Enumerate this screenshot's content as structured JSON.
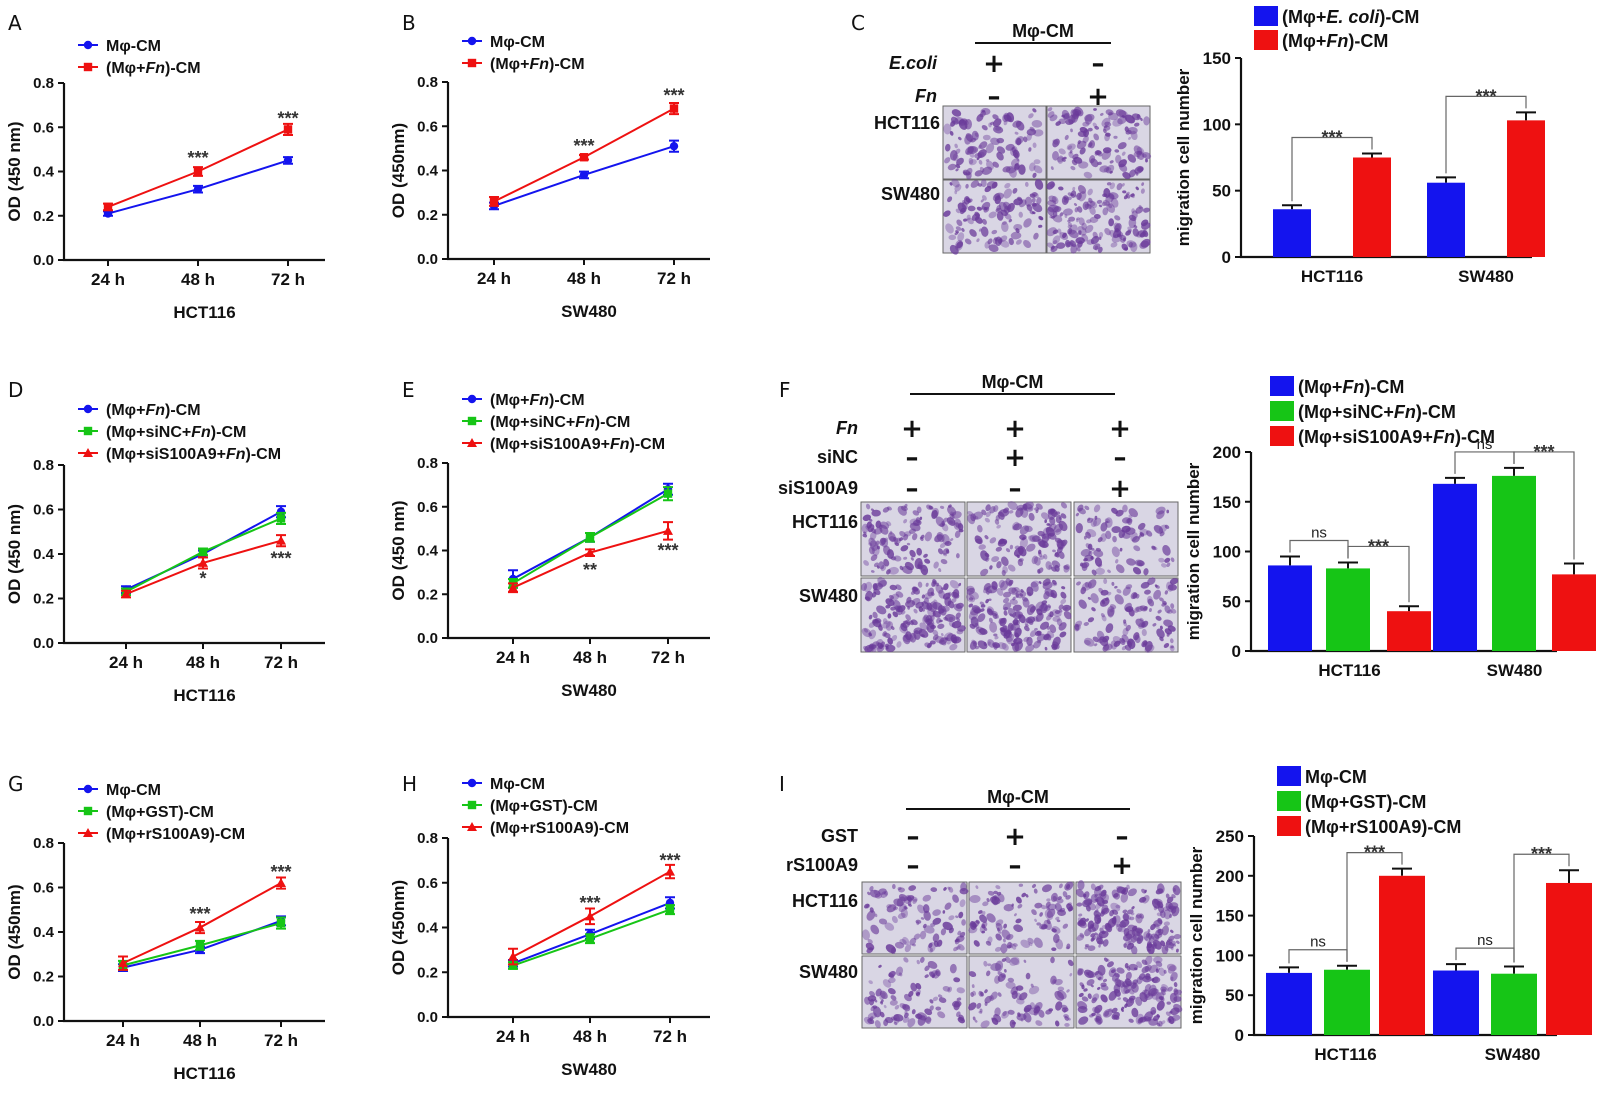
{
  "panels": {
    "A": {
      "letter": "A"
    },
    "B": {
      "letter": "B"
    },
    "C": {
      "letter": "C"
    },
    "D": {
      "letter": "D"
    },
    "E": {
      "letter": "E"
    },
    "F": {
      "letter": "F"
    },
    "G": {
      "letter": "G"
    },
    "H": {
      "letter": "H"
    },
    "I": {
      "letter": "I"
    }
  },
  "colors": {
    "blue": "#1414ee",
    "red": "#ee1111",
    "green": "#16c516"
  },
  "microscopy": {
    "C": {
      "header": "Mφ-CM",
      "rows": [
        "HCT116",
        "SW480"
      ],
      "conditions": [
        {
          "label": "E.coli",
          "italic": true,
          "signs": [
            "+",
            "-"
          ]
        },
        {
          "label": "Fn",
          "italic": true,
          "signs": [
            "-",
            "+"
          ]
        }
      ],
      "densities": [
        [
          0.45,
          0.55
        ],
        [
          0.5,
          0.8
        ]
      ]
    },
    "F": {
      "header": "Mφ-CM",
      "rows": [
        "HCT116",
        "SW480"
      ],
      "conditions": [
        {
          "label": "Fn",
          "italic": true,
          "signs": [
            "+",
            "+",
            "+"
          ]
        },
        {
          "label": "siNC",
          "italic": false,
          "signs": [
            "-",
            "+",
            "-"
          ]
        },
        {
          "label": "siS100A9",
          "italic": false,
          "signs": [
            "-",
            "-",
            "+"
          ]
        }
      ],
      "densities": [
        [
          0.6,
          0.6,
          0.35
        ],
        [
          0.95,
          0.95,
          0.55
        ]
      ]
    },
    "I": {
      "header": "Mφ-CM",
      "rows": [
        "HCT116",
        "SW480"
      ],
      "conditions": [
        {
          "label": "GST",
          "italic": false,
          "signs": [
            "-",
            "+",
            "-"
          ]
        },
        {
          "label": "rS100A9",
          "italic": false,
          "signs": [
            "-",
            "-",
            "+"
          ]
        }
      ],
      "densities": [
        [
          0.4,
          0.45,
          1.0
        ],
        [
          0.35,
          0.35,
          0.8
        ]
      ]
    }
  },
  "chart_data": [
    {
      "id": "A",
      "type": "line",
      "xlabel": "HCT116",
      "ylabel": "OD (450 nm)",
      "ylim": [
        0,
        0.8
      ],
      "yticks": [
        "0.0",
        "0.2",
        "0.4",
        "0.6",
        "0.8"
      ],
      "categories": [
        "24 h",
        "48 h",
        "72 h"
      ],
      "series": [
        {
          "name": "Mφ-CM",
          "color": "#1414ee",
          "marker": "circle",
          "values": [
            0.21,
            0.32,
            0.45
          ],
          "errors": [
            0.01,
            0.015,
            0.015
          ]
        },
        {
          "name": "(Mφ+Fn)-CM",
          "color": "#ee1111",
          "marker": "square",
          "values": [
            0.24,
            0.4,
            0.59
          ],
          "errors": [
            0.015,
            0.02,
            0.025
          ]
        }
      ],
      "annotations": [
        {
          "category": "48 h",
          "text": "***",
          "y": 0.46
        },
        {
          "category": "72 h",
          "text": "***",
          "y": 0.64
        }
      ]
    },
    {
      "id": "B",
      "type": "line",
      "xlabel": "SW480",
      "ylabel": "OD (450nm)",
      "ylim": [
        0,
        0.8
      ],
      "yticks": [
        "0.0",
        "0.2",
        "0.4",
        "0.6",
        "0.8"
      ],
      "categories": [
        "24 h",
        "48 h",
        "72 h"
      ],
      "series": [
        {
          "name": "Mφ-CM",
          "color": "#1414ee",
          "marker": "circle",
          "values": [
            0.24,
            0.38,
            0.51
          ],
          "errors": [
            0.015,
            0.015,
            0.025
          ]
        },
        {
          "name": "(Mφ+Fn)-CM",
          "color": "#ee1111",
          "marker": "square",
          "values": [
            0.26,
            0.46,
            0.68
          ],
          "errors": [
            0.02,
            0.01,
            0.025
          ]
        }
      ],
      "annotations": [
        {
          "category": "48 h",
          "text": "***",
          "y": 0.51
        },
        {
          "category": "72 h",
          "text": "***",
          "y": 0.74
        }
      ]
    },
    {
      "id": "C",
      "type": "bar",
      "xlabel": "",
      "ylabel": "migration cell number",
      "ylim": [
        0,
        150
      ],
      "yticks": [
        "0",
        "50",
        "100",
        "150"
      ],
      "categories": [
        "HCT116",
        "SW480"
      ],
      "series": [
        {
          "name": "(Mφ+E. coli)-CM",
          "color": "#1414ee",
          "values": [
            36,
            56
          ],
          "errors": [
            3,
            4
          ]
        },
        {
          "name": "(Mφ+Fn)-CM",
          "color": "#ee1111",
          "values": [
            75,
            103
          ],
          "errors": [
            3,
            6
          ]
        }
      ],
      "comparisons": [
        {
          "category": 0,
          "from": 0,
          "to": 1,
          "text": "***"
        },
        {
          "category": 1,
          "from": 0,
          "to": 1,
          "text": "***"
        }
      ]
    },
    {
      "id": "D",
      "type": "line",
      "xlabel": "HCT116",
      "ylabel": "OD (450 nm)",
      "ylim": [
        0,
        0.8
      ],
      "yticks": [
        "0.0",
        "0.2",
        "0.4",
        "0.6",
        "0.8"
      ],
      "categories": [
        "24 h",
        "48 h",
        "72 h"
      ],
      "series": [
        {
          "name": "(Mφ+Fn)-CM",
          "color": "#1414ee",
          "marker": "circle",
          "values": [
            0.24,
            0.4,
            0.59
          ],
          "errors": [
            0.015,
            0.015,
            0.025
          ]
        },
        {
          "name": "(Mφ+siNC+Fn)-CM",
          "color": "#16c516",
          "marker": "square",
          "values": [
            0.23,
            0.41,
            0.56
          ],
          "errors": [
            0.015,
            0.015,
            0.025
          ]
        },
        {
          "name": "(Mφ+siS100A9+Fn)-CM",
          "color": "#ee1111",
          "marker": "triangle",
          "values": [
            0.22,
            0.36,
            0.46
          ],
          "errors": [
            0.015,
            0.025,
            0.025
          ]
        }
      ],
      "annotations": [
        {
          "category": "48 h",
          "text": "*",
          "y": 0.29
        },
        {
          "category": "72 h",
          "text": "***",
          "y": 0.38
        }
      ]
    },
    {
      "id": "E",
      "type": "line",
      "xlabel": "SW480",
      "ylabel": "OD (450 nm)",
      "ylim": [
        0,
        0.8
      ],
      "yticks": [
        "0.0",
        "0.2",
        "0.4",
        "0.6",
        "0.8"
      ],
      "categories": [
        "24 h",
        "48 h",
        "72 h"
      ],
      "series": [
        {
          "name": "(Mφ+Fn)-CM",
          "color": "#1414ee",
          "marker": "circle",
          "values": [
            0.27,
            0.46,
            0.68
          ],
          "errors": [
            0.04,
            0.02,
            0.025
          ]
        },
        {
          "name": "(Mφ+siNC+Fn)-CM",
          "color": "#16c516",
          "marker": "square",
          "values": [
            0.25,
            0.46,
            0.66
          ],
          "errors": [
            0.02,
            0.02,
            0.03
          ]
        },
        {
          "name": "(Mφ+siS100A9+Fn)-CM",
          "color": "#ee1111",
          "marker": "triangle",
          "values": [
            0.23,
            0.39,
            0.49
          ],
          "errors": [
            0.02,
            0.015,
            0.04
          ]
        }
      ],
      "annotations": [
        {
          "category": "48 h",
          "text": "**",
          "y": 0.31
        },
        {
          "category": "72 h",
          "text": "***",
          "y": 0.4
        }
      ]
    },
    {
      "id": "F",
      "type": "bar",
      "xlabel": "",
      "ylabel": "migration cell number",
      "ylim": [
        0,
        200
      ],
      "yticks": [
        "0",
        "50",
        "100",
        "150",
        "200"
      ],
      "categories": [
        "HCT116",
        "SW480"
      ],
      "series": [
        {
          "name": "(Mφ+Fn)-CM",
          "color": "#1414ee",
          "values": [
            86,
            168
          ],
          "errors": [
            9,
            6
          ]
        },
        {
          "name": "(Mφ+siNC+Fn)-CM",
          "color": "#16c516",
          "values": [
            83,
            176
          ],
          "errors": [
            6,
            8
          ]
        },
        {
          "name": "(Mφ+siS100A9+Fn)-CM",
          "color": "#ee1111",
          "values": [
            40,
            77
          ],
          "errors": [
            5,
            11
          ]
        }
      ],
      "comparisons": [
        {
          "category": 0,
          "from": 0,
          "to": 1,
          "text": "ns"
        },
        {
          "category": 0,
          "from": 1,
          "to": 2,
          "text": "***"
        },
        {
          "category": 1,
          "from": 0,
          "to": 1,
          "text": "ns"
        },
        {
          "category": 1,
          "from": 1,
          "to": 2,
          "text": "***"
        }
      ]
    },
    {
      "id": "G",
      "type": "line",
      "xlabel": "HCT116",
      "ylabel": "OD (450nm)",
      "ylim": [
        0,
        0.8
      ],
      "yticks": [
        "0.0",
        "0.2",
        "0.4",
        "0.6",
        "0.8"
      ],
      "categories": [
        "24 h",
        "48 h",
        "72 h"
      ],
      "series": [
        {
          "name": "Mφ-CM",
          "color": "#1414ee",
          "marker": "circle",
          "values": [
            0.24,
            0.32,
            0.45
          ],
          "errors": [
            0.015,
            0.015,
            0.02
          ]
        },
        {
          "name": "(Mφ+GST)-CM",
          "color": "#16c516",
          "marker": "square",
          "values": [
            0.25,
            0.34,
            0.44
          ],
          "errors": [
            0.02,
            0.02,
            0.025
          ]
        },
        {
          "name": "(Mφ+rS100A9)-CM",
          "color": "#ee1111",
          "marker": "triangle",
          "values": [
            0.26,
            0.42,
            0.62
          ],
          "errors": [
            0.03,
            0.025,
            0.025
          ]
        }
      ],
      "annotations": [
        {
          "category": "48 h",
          "text": "***",
          "y": 0.48
        },
        {
          "category": "72 h",
          "text": "***",
          "y": 0.67
        }
      ]
    },
    {
      "id": "H",
      "type": "line",
      "xlabel": "SW480",
      "ylabel": "OD (450nm)",
      "ylim": [
        0,
        0.8
      ],
      "yticks": [
        "0.0",
        "0.2",
        "0.4",
        "0.6",
        "0.8"
      ],
      "categories": [
        "24 h",
        "48 h",
        "72 h"
      ],
      "series": [
        {
          "name": "Mφ-CM",
          "color": "#1414ee",
          "marker": "circle",
          "values": [
            0.24,
            0.37,
            0.51
          ],
          "errors": [
            0.015,
            0.02,
            0.025
          ]
        },
        {
          "name": "(Mφ+GST)-CM",
          "color": "#16c516",
          "marker": "square",
          "values": [
            0.23,
            0.35,
            0.48
          ],
          "errors": [
            0.015,
            0.02,
            0.02
          ]
        },
        {
          "name": "(Mφ+rS100A9)-CM",
          "color": "#ee1111",
          "marker": "triangle",
          "values": [
            0.27,
            0.45,
            0.65
          ],
          "errors": [
            0.035,
            0.035,
            0.03
          ]
        }
      ],
      "annotations": [
        {
          "category": "48 h",
          "text": "***",
          "y": 0.51
        },
        {
          "category": "72 h",
          "text": "***",
          "y": 0.7
        }
      ]
    },
    {
      "id": "I",
      "type": "bar",
      "xlabel": "",
      "ylabel": "migration cell number",
      "ylim": [
        0,
        250
      ],
      "yticks": [
        "0",
        "50",
        "100",
        "150",
        "200",
        "250"
      ],
      "categories": [
        "HCT116",
        "SW480"
      ],
      "series": [
        {
          "name": "Mφ-CM",
          "color": "#1414ee",
          "values": [
            78,
            81
          ],
          "errors": [
            7,
            8
          ]
        },
        {
          "name": "(Mφ+GST)-CM",
          "color": "#16c516",
          "values": [
            82,
            77
          ],
          "errors": [
            5,
            9
          ]
        },
        {
          "name": "(Mφ+rS100A9)-CM",
          "color": "#ee1111",
          "values": [
            200,
            191
          ],
          "errors": [
            9,
            16
          ]
        }
      ],
      "comparisons": [
        {
          "category": 0,
          "from": 0,
          "to": 1,
          "text": "ns"
        },
        {
          "category": 0,
          "from": 1,
          "to": 2,
          "text": "***"
        },
        {
          "category": 1,
          "from": 0,
          "to": 1,
          "text": "ns"
        },
        {
          "category": 1,
          "from": 1,
          "to": 2,
          "text": "***"
        }
      ]
    }
  ]
}
